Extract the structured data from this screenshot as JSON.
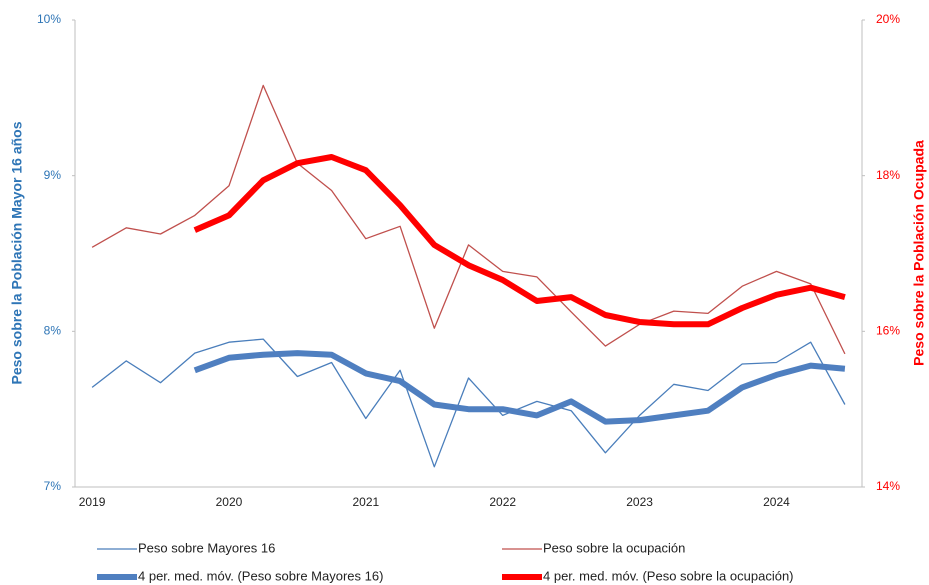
{
  "chart_data": {
    "type": "line",
    "categories": [
      "2019",
      null,
      null,
      null,
      "2020",
      null,
      null,
      null,
      "2021",
      null,
      null,
      null,
      "2022",
      null,
      null,
      null,
      "2023",
      null,
      null,
      null,
      "2024",
      null,
      null
    ],
    "ylabel": "Peso sobre la Población Mayor 16 años",
    "y2label": "Peso sobre la Población Ocupada",
    "ylim": [
      7,
      10
    ],
    "yticks": [
      {
        "value": 7,
        "label": "7%"
      },
      {
        "value": 8,
        "label": "8%"
      },
      {
        "value": 9,
        "label": "9%"
      },
      {
        "value": 10,
        "label": "10%"
      }
    ],
    "y2lim": [
      14,
      20
    ],
    "y2ticks": [
      {
        "value": 14,
        "label": "14%"
      },
      {
        "value": 16,
        "label": "16%"
      },
      {
        "value": 18,
        "label": "18%"
      },
      {
        "value": 20,
        "label": "20%"
      }
    ],
    "ycolor": "#2e75b6",
    "y2color": "#ff0000",
    "legend": "bottom",
    "series": [
      {
        "name": "Peso sobre Mayores 16",
        "color": "#4a7ebb",
        "width": 1.3,
        "values": [
          7.64,
          7.81,
          7.67,
          7.86,
          7.93,
          7.95,
          7.71,
          7.8,
          7.44,
          7.75,
          7.13,
          7.7,
          7.46,
          7.55,
          7.49,
          7.22,
          7.46,
          7.66,
          7.62,
          7.79,
          7.8,
          7.93,
          7.53
        ]
      },
      {
        "name": "Peso sobre la ocupación",
        "color": "#c0504d",
        "width": 1.3,
        "axis": "y2",
        "values": [
          17.08,
          17.33,
          17.25,
          17.49,
          17.87,
          19.16,
          18.16,
          17.81,
          17.19,
          17.35,
          16.04,
          17.11,
          16.77,
          16.7,
          16.25,
          15.81,
          16.09,
          16.26,
          16.23,
          16.58,
          16.77,
          16.61,
          15.71
        ]
      },
      {
        "name": "4 per. med. móv. (Peso sobre Mayores 16)",
        "color": "#4f7fc0",
        "width": 6,
        "values": [
          null,
          null,
          null,
          7.75,
          7.83,
          7.85,
          7.86,
          7.85,
          7.73,
          7.68,
          7.53,
          7.5,
          7.5,
          7.46,
          7.55,
          7.42,
          7.43,
          7.46,
          7.49,
          7.64,
          7.72,
          7.78,
          7.76
        ]
      },
      {
        "name": "4 per. med. móv. (Peso sobre la ocupación)",
        "color": "#ff0000",
        "width": 6,
        "axis": "y2",
        "values": [
          null,
          null,
          null,
          17.3,
          17.49,
          17.94,
          18.16,
          18.24,
          18.07,
          17.62,
          17.11,
          16.85,
          16.66,
          16.39,
          16.44,
          16.21,
          16.12,
          16.09,
          16.09,
          16.3,
          16.47,
          16.56,
          16.44
        ]
      }
    ]
  }
}
